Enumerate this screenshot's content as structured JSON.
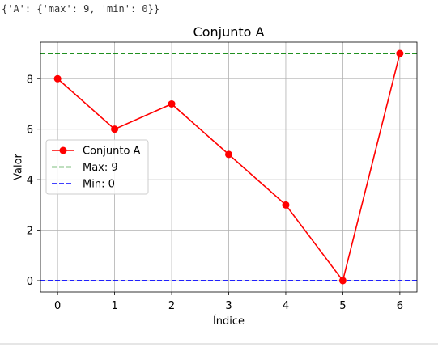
{
  "output_text": "{'A': {'max': 9, 'min': 0}}",
  "colors": {
    "series": "#ff0000",
    "max_line": "#008000",
    "min_line": "#0000ff",
    "grid": "#b0b0b0",
    "axes": "#000000"
  },
  "chart_data": {
    "type": "line",
    "title": "Conjunto A",
    "xlabel": "Índice",
    "ylabel": "Valor",
    "x": [
      0,
      1,
      2,
      3,
      4,
      5,
      6
    ],
    "series": [
      {
        "name": "Conjunto A",
        "values": [
          8,
          6,
          7,
          5,
          3,
          0,
          9
        ],
        "color": "#ff0000",
        "marker": "circle"
      }
    ],
    "hlines": [
      {
        "name": "Max: 9",
        "y": 9,
        "color": "#008000",
        "style": "dashed"
      },
      {
        "name": "Min: 0",
        "y": 0,
        "color": "#0000ff",
        "style": "dashed"
      }
    ],
    "xlim": [
      -0.3,
      6.3
    ],
    "ylim": [
      -0.45,
      9.45
    ],
    "xticks": [
      0,
      1,
      2,
      3,
      4,
      5,
      6
    ],
    "yticks": [
      0,
      2,
      4,
      6,
      8
    ],
    "grid": true,
    "legend": {
      "position": "center-left",
      "entries": [
        "Conjunto A",
        "Max: 9",
        "Min: 0"
      ]
    }
  }
}
